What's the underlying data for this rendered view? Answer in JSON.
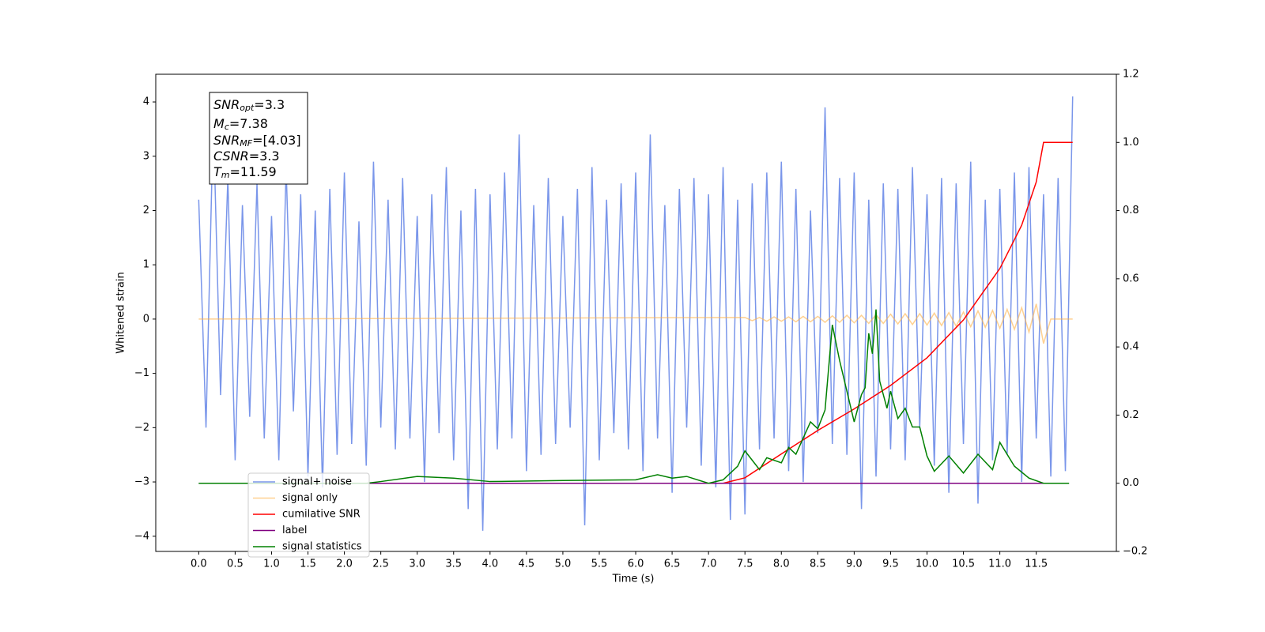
{
  "chart_data": {
    "type": "line",
    "xlabel": "Time (s)",
    "ylabel": "Whitened strain",
    "xlim": [
      -0.59,
      12.6
    ],
    "ylim": [
      -4.28,
      4.51
    ],
    "y2lim": [
      -0.2,
      1.2
    ],
    "xticks": [
      {
        "value": 0,
        "label": "0.0"
      },
      0.5,
      {
        "value": 1,
        "label": "1.0"
      },
      1.5,
      {
        "value": 2,
        "label": "2.0"
      },
      2.5,
      {
        "value": 3,
        "label": "3.0"
      },
      3.5,
      {
        "value": 4,
        "label": "4.0"
      },
      4.5,
      {
        "value": 5,
        "label": "5.0"
      },
      5.5,
      {
        "value": 6,
        "label": "6.0"
      },
      6.5,
      {
        "value": 7,
        "label": "7.0"
      },
      7.5,
      {
        "value": 8,
        "label": "8.0"
      },
      8.5,
      {
        "value": 9,
        "label": "9.0"
      },
      9.5,
      {
        "value": 10,
        "label": "10.0"
      },
      10.5,
      {
        "value": 11,
        "label": "11.0"
      },
      11.5
    ],
    "yticks": [
      {
        "value": -4,
        "label": "−4"
      },
      {
        "value": -3,
        "label": "−3"
      },
      {
        "value": -2,
        "label": "−2"
      },
      {
        "value": -1,
        "label": "−1"
      },
      0,
      1,
      2,
      3,
      4
    ],
    "y2ticks": [
      {
        "value": -0.2,
        "label": "−0.2"
      },
      {
        "value": 0,
        "label": "0.0"
      },
      0.2,
      0.4,
      0.6,
      0.8,
      {
        "value": 1,
        "label": "1.0"
      },
      1.2
    ],
    "legend": "lower left",
    "annotation": [
      {
        "symbol": "SNR",
        "subscript": "opt",
        "value_text": "=3.3"
      },
      {
        "symbol": "M",
        "subscript": "c",
        "value_text": "=7.38"
      },
      {
        "symbol": "SNR",
        "subscript": "MF",
        "value_text": "=[4.03]"
      },
      {
        "symbol": "CSNR",
        "value_text": "=3.3"
      },
      {
        "symbol": "T",
        "subscript": "m",
        "value_text": "=11.59"
      }
    ],
    "series": [
      {
        "name": "signal+ noise",
        "color": "#4169e1",
        "x": [
          0,
          0.1,
          0.2,
          0.3,
          0.4,
          0.5,
          0.6,
          0.7,
          0.8,
          0.9,
          1,
          1.1,
          1.2,
          1.3,
          1.4,
          1.5,
          1.6,
          1.7,
          1.8,
          1.9,
          2,
          2.1,
          2.2,
          2.3,
          2.4,
          2.5,
          2.6,
          2.7,
          2.8,
          2.9,
          3,
          3.1,
          3.2,
          3.3,
          3.4,
          3.5,
          3.6,
          3.7,
          3.8,
          3.9,
          4,
          4.1,
          4.2,
          4.3,
          4.4,
          4.5,
          4.6,
          4.7,
          4.8,
          4.9,
          5,
          5.1,
          5.2,
          5.3,
          5.4,
          5.5,
          5.6,
          5.7,
          5.8,
          5.9,
          6,
          6.1,
          6.2,
          6.3,
          6.4,
          6.5,
          6.6,
          6.7,
          6.8,
          6.9,
          7,
          7.1,
          7.2,
          7.3,
          7.4,
          7.5,
          7.6,
          7.7,
          7.8,
          7.9,
          8,
          8.1,
          8.2,
          8.3,
          8.4,
          8.5,
          8.6,
          8.7,
          8.8,
          8.9,
          9,
          9.1,
          9.2,
          9.3,
          9.4,
          9.5,
          9.6,
          9.7,
          9.8,
          9.9,
          10,
          10.1,
          10.2,
          10.3,
          10.4,
          10.5,
          10.6,
          10.7,
          10.8,
          10.9,
          11,
          11.1,
          11.2,
          11.3,
          11.4,
          11.5,
          11.6,
          11.7,
          11.8,
          11.9,
          12
        ],
        "values": [
          2.2,
          -2.0,
          3.7,
          -1.4,
          2.6,
          -2.6,
          2.1,
          -1.8,
          2.5,
          -2.2,
          1.9,
          -2.6,
          2.8,
          -1.7,
          2.3,
          -2.9,
          2.0,
          -3.1,
          2.4,
          -2.5,
          2.7,
          -2.3,
          1.8,
          -2.7,
          2.9,
          -2.0,
          2.2,
          -2.4,
          2.6,
          -2.2,
          1.9,
          -3.0,
          2.3,
          -2.1,
          2.8,
          -2.6,
          2.0,
          -3.5,
          2.4,
          -3.9,
          2.3,
          -2.4,
          2.7,
          -2.2,
          3.4,
          -2.8,
          2.1,
          -2.5,
          2.6,
          -2.3,
          1.9,
          -2.0,
          2.4,
          -3.8,
          2.8,
          -2.6,
          2.2,
          -2.1,
          2.5,
          -2.4,
          2.7,
          -2.8,
          3.4,
          -2.2,
          2.1,
          -3.2,
          2.4,
          -2.0,
          2.6,
          -2.7,
          2.3,
          -3.1,
          2.8,
          -3.7,
          2.2,
          -3.6,
          2.5,
          -2.4,
          2.7,
          -2.2,
          2.9,
          -2.8,
          2.4,
          -3.0,
          2.0,
          -2.1,
          3.9,
          -2.3,
          2.6,
          -2.5,
          2.7,
          -3.5,
          2.2,
          -2.9,
          2.5,
          -2.4,
          2.4,
          -2.6,
          2.8,
          -2.0,
          2.3,
          -2.7,
          2.6,
          -3.2,
          2.5,
          -2.3,
          2.9,
          -3.4,
          2.2,
          -2.6,
          2.4,
          -2.5,
          2.7,
          -3.0,
          2.8,
          -2.2,
          2.3,
          -2.9,
          2.6,
          -2.8,
          4.1
        ]
      },
      {
        "name": "signal only",
        "color": "#ffb347",
        "x": [
          0,
          7.5,
          7.6,
          7.7,
          7.8,
          7.9,
          8,
          8.1,
          8.2,
          8.3,
          8.4,
          8.5,
          8.6,
          8.7,
          8.8,
          8.9,
          9,
          9.1,
          9.2,
          9.3,
          9.4,
          9.5,
          9.6,
          9.7,
          9.8,
          9.9,
          10,
          10.1,
          10.2,
          10.3,
          10.4,
          10.5,
          10.6,
          10.7,
          10.8,
          10.9,
          11,
          11.1,
          11.2,
          11.3,
          11.4,
          11.5,
          11.6,
          11.7,
          12
        ],
        "values": [
          0,
          0.03,
          -0.03,
          0.03,
          -0.04,
          0.04,
          -0.04,
          0.04,
          -0.05,
          0.05,
          -0.05,
          0.05,
          -0.06,
          0.06,
          -0.06,
          0.07,
          -0.07,
          0.07,
          -0.08,
          0.08,
          -0.08,
          0.09,
          -0.09,
          0.1,
          -0.1,
          0.1,
          -0.11,
          0.11,
          -0.12,
          0.12,
          -0.13,
          0.13,
          -0.14,
          0.15,
          -0.15,
          0.16,
          -0.17,
          0.18,
          -0.19,
          0.21,
          -0.24,
          0.28,
          -0.45,
          0,
          0
        ]
      },
      {
        "name": "cumilative SNR",
        "color": "#ff0000",
        "axis": "y2",
        "x": [
          7.2,
          7.5,
          8,
          8.5,
          9,
          9.5,
          10,
          10.5,
          11,
          11.3,
          11.5,
          11.6,
          12
        ],
        "values": [
          0,
          0.016,
          0.086,
          0.155,
          0.218,
          0.287,
          0.368,
          0.479,
          0.63,
          0.757,
          0.884,
          1,
          1
        ]
      },
      {
        "name": "label",
        "color": "#800080",
        "axis": "y2",
        "x": [
          0,
          11.95
        ],
        "values": [
          0,
          0
        ]
      },
      {
        "name": "signal statistics",
        "color": "#008000",
        "axis": "y2",
        "x": [
          0,
          2.3,
          2.5,
          3,
          3.5,
          4,
          5,
          6,
          6.3,
          6.5,
          6.7,
          7,
          7.2,
          7.4,
          7.5,
          7.7,
          7.8,
          8,
          8.1,
          8.2,
          8.4,
          8.5,
          8.6,
          8.7,
          8.8,
          9,
          9.1,
          9.15,
          9.2,
          9.25,
          9.3,
          9.35,
          9.45,
          9.5,
          9.6,
          9.7,
          9.8,
          9.9,
          10,
          10.1,
          10.3,
          10.5,
          10.7,
          10.9,
          11,
          11.2,
          11.4,
          11.6,
          11.95
        ],
        "values": [
          0,
          0,
          0.005,
          0.02,
          0.015,
          0.005,
          0.008,
          0.01,
          0.025,
          0.015,
          0.02,
          0,
          0.01,
          0.05,
          0.095,
          0.04,
          0.075,
          0.06,
          0.105,
          0.085,
          0.18,
          0.16,
          0.215,
          0.465,
          0.36,
          0.18,
          0.26,
          0.28,
          0.44,
          0.38,
          0.51,
          0.3,
          0.22,
          0.27,
          0.19,
          0.22,
          0.165,
          0.165,
          0.08,
          0.035,
          0.08,
          0.03,
          0.085,
          0.04,
          0.12,
          0.05,
          0.015,
          0,
          0
        ]
      }
    ]
  }
}
